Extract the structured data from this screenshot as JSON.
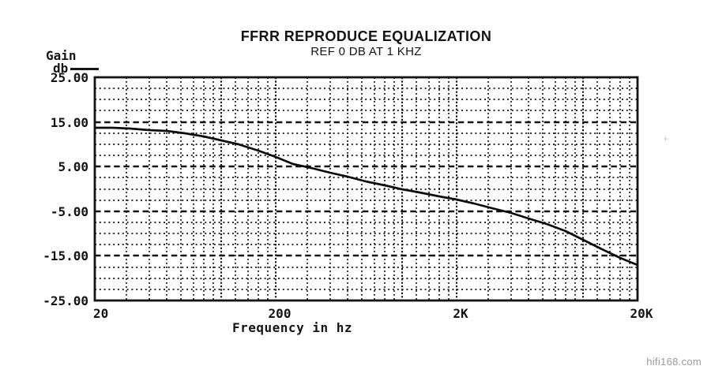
{
  "page": {
    "watermark": "hifi168.com",
    "artifact_mark": "+"
  },
  "colors": {
    "ink": "#141414",
    "curve": "#0d0d0d",
    "watermark_gray": "#9b9b9b"
  },
  "chart_data": {
    "type": "line",
    "title": "FFRR REPRODUCE EQUALIZATION",
    "subtitle": "REF 0 DB AT 1 KHZ",
    "ylabel": "Gain",
    "ylabel_unit": "db",
    "xlabel": "Frequency in hz",
    "x_scale": "log",
    "x_range_hz": [
      20,
      20000
    ],
    "y_range_db": [
      -25,
      25
    ],
    "grid": true,
    "legend": {
      "label": "db",
      "style": "solid-line",
      "position": "top-left"
    },
    "y_ticks": [
      {
        "db": 25,
        "label": "25.00"
      },
      {
        "db": 15,
        "label": "15.00"
      },
      {
        "db": 5,
        "label": "5.00"
      },
      {
        "db": -5,
        "label": "-5.00"
      },
      {
        "db": -15,
        "label": "-15.00"
      },
      {
        "db": -25,
        "label": "-25.00"
      }
    ],
    "y_major_gridlines_db": [
      15,
      5,
      -5,
      -15
    ],
    "y_minor_step_db": 2.5,
    "x_ticks": [
      {
        "hz": 20,
        "label": "20",
        "align": "left"
      },
      {
        "hz": 200,
        "label": "200",
        "align": "center"
      },
      {
        "hz": 2000,
        "label": "2K",
        "align": "center"
      },
      {
        "hz": 20000,
        "label": "20K",
        "align": "center"
      }
    ],
    "x_minor_gridlines_hz": [
      30,
      40,
      50,
      60,
      70,
      80,
      90,
      120,
      140,
      160,
      180,
      300,
      400,
      500,
      600,
      700,
      800,
      900,
      1200,
      1400,
      1600,
      1800,
      3000,
      4000,
      5000,
      6000,
      7000,
      8000,
      9000,
      12000,
      14000,
      16000,
      18000
    ],
    "x_emphasis_gridlines_hz": [
      100,
      200,
      1000,
      2000,
      10000
    ],
    "series": [
      {
        "name": "db",
        "points": [
          [
            20,
            13.7
          ],
          [
            25,
            13.7
          ],
          [
            31.5,
            13.5
          ],
          [
            40,
            13.2
          ],
          [
            50,
            12.9
          ],
          [
            63,
            12.4
          ],
          [
            80,
            11.8
          ],
          [
            100,
            10.9
          ],
          [
            125,
            9.9
          ],
          [
            160,
            8.5
          ],
          [
            200,
            7.1
          ],
          [
            250,
            5.5
          ],
          [
            315,
            4.6
          ],
          [
            400,
            3.7
          ],
          [
            500,
            2.7
          ],
          [
            630,
            1.7
          ],
          [
            800,
            0.8
          ],
          [
            1000,
            0.0
          ],
          [
            1250,
            -0.8
          ],
          [
            1600,
            -1.7
          ],
          [
            2000,
            -2.4
          ],
          [
            2500,
            -3.2
          ],
          [
            3150,
            -4.3
          ],
          [
            4000,
            -5.4
          ],
          [
            5000,
            -6.6
          ],
          [
            6300,
            -7.8
          ],
          [
            8000,
            -9.5
          ],
          [
            10000,
            -11.4
          ],
          [
            12500,
            -13.3
          ],
          [
            16000,
            -15.4
          ],
          [
            20000,
            -17.0
          ]
        ]
      }
    ]
  }
}
